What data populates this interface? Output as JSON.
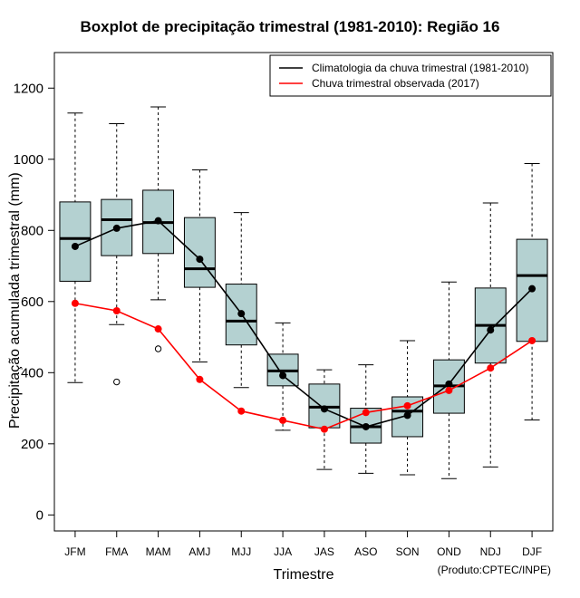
{
  "chart_data": {
    "type": "boxplot",
    "title": "Boxplot de precipitação trimestral (1981-2010): Região 16",
    "xlabel": "Trimestre",
    "ylabel": "Precipitação acumulada trimestral (mm)",
    "credit": "(Produto:CPTEC/INPE)",
    "ylim": [
      -45,
      1300
    ],
    "yticks": [
      0,
      200,
      400,
      600,
      800,
      1000,
      1200
    ],
    "categories": [
      "JFM",
      "FMA",
      "MAM",
      "AMJ",
      "MJJ",
      "JJA",
      "JAS",
      "ASO",
      "SON",
      "OND",
      "NDJ",
      "DJF"
    ],
    "boxes": [
      {
        "min": 372,
        "q1": 657,
        "median": 777,
        "q3": 880,
        "max": 1130,
        "outliers": []
      },
      {
        "min": 535,
        "q1": 729,
        "median": 830,
        "q3": 887,
        "max": 1100,
        "outliers": [
          374
        ]
      },
      {
        "min": 605,
        "q1": 735,
        "median": 822,
        "q3": 913,
        "max": 1147,
        "outliers": [
          467
        ]
      },
      {
        "min": 430,
        "q1": 640,
        "median": 692,
        "q3": 836,
        "max": 970,
        "outliers": []
      },
      {
        "min": 358,
        "q1": 478,
        "median": 545,
        "q3": 649,
        "max": 850,
        "outliers": []
      },
      {
        "min": 238,
        "q1": 363,
        "median": 405,
        "q3": 452,
        "max": 540,
        "outliers": []
      },
      {
        "min": 128,
        "q1": 245,
        "median": 303,
        "q3": 368,
        "max": 408,
        "outliers": []
      },
      {
        "min": 117,
        "q1": 202,
        "median": 248,
        "q3": 300,
        "max": 422,
        "outliers": []
      },
      {
        "min": 113,
        "q1": 220,
        "median": 292,
        "q3": 332,
        "max": 490,
        "outliers": []
      },
      {
        "min": 102,
        "q1": 286,
        "median": 363,
        "q3": 436,
        "max": 655,
        "outliers": []
      },
      {
        "min": 135,
        "q1": 427,
        "median": 533,
        "q3": 638,
        "max": 877,
        "outliers": []
      },
      {
        "min": 267,
        "q1": 488,
        "median": 673,
        "q3": 775,
        "max": 988,
        "outliers": []
      }
    ],
    "series": [
      {
        "name": "Climatologia da chuva trimestral (1981-2010)",
        "color": "#000000",
        "values": [
          755,
          806,
          827,
          719,
          566,
          392,
          298,
          248,
          280,
          368,
          520,
          636
        ]
      },
      {
        "name": "Chuva trimestral observada (2017)",
        "color": "#ff0000",
        "values": [
          595,
          574,
          523,
          381,
          292,
          266,
          241,
          288,
          307,
          350,
          413,
          490
        ]
      }
    ],
    "box_color": "#b4d1d1",
    "legend_position": "top-right"
  }
}
